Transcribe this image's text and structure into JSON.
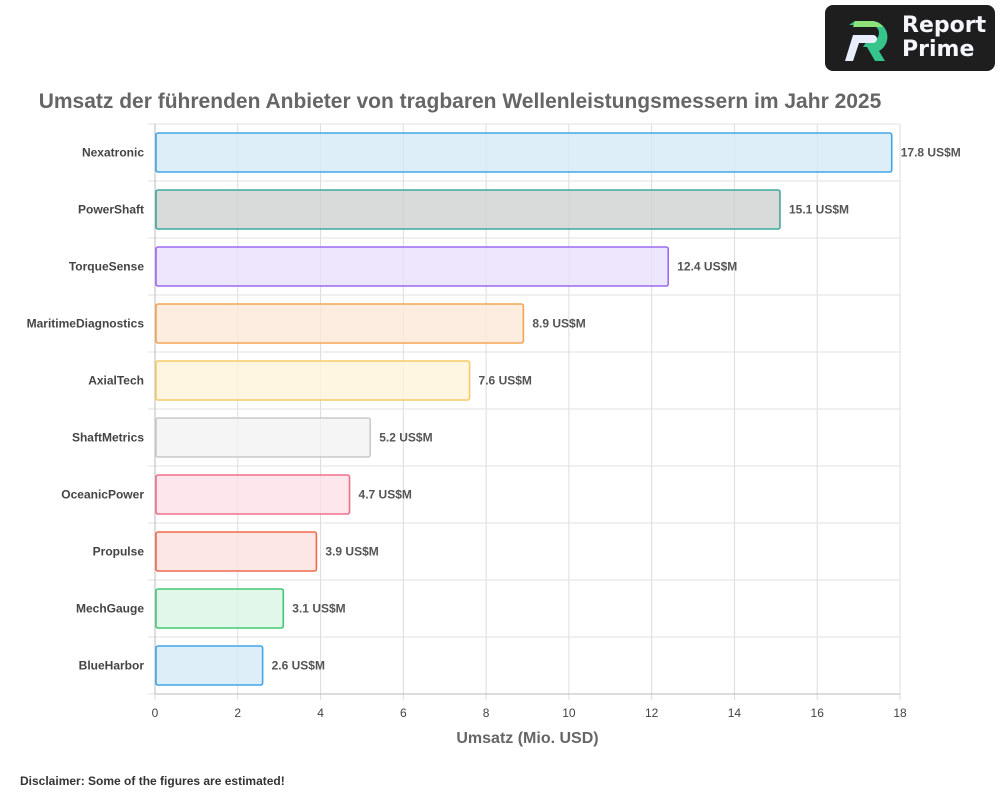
{
  "logo": {
    "line1": "Report",
    "line2": "Prime"
  },
  "disclaimer": "Disclaimer: Some of the figures are estimated!",
  "chart_data": {
    "type": "bar",
    "orientation": "horizontal",
    "title": "Umsatz der führenden Anbieter von tragbaren Wellenleistungsmessern im Jahr 2025",
    "xlabel": "Umsatz (Mio. USD)",
    "ylabel": "",
    "xlim": [
      0,
      18
    ],
    "xticks": [
      0,
      2,
      4,
      6,
      8,
      10,
      12,
      14,
      16,
      18
    ],
    "grid": true,
    "value_suffix": " US$M",
    "categories": [
      "Nexatronic",
      "PowerShaft",
      "TorqueSense",
      "MaritimeDiagnostics",
      "AxialTech",
      "ShaftMetrics",
      "OceanicPower",
      "Propulse",
      "MechGauge",
      "BlueHarbor"
    ],
    "values": [
      17.8,
      15.1,
      12.4,
      8.9,
      7.6,
      5.2,
      4.7,
      3.9,
      3.1,
      2.6
    ],
    "value_labels": [
      "17.8 US$M",
      "15.1 US$M",
      "12.4 US$M",
      "8.9 US$M",
      "7.6 US$M",
      "5.2 US$M",
      "4.7 US$M",
      "3.9 US$M",
      "3.1 US$M",
      "2.6 US$M"
    ],
    "fill_colors": [
      "#d6eaf8",
      "#d0d1d1",
      "#e8e0fd",
      "#fde9d8",
      "#fff4da",
      "#f2f2f2",
      "#fde0e7",
      "#fde1dd",
      "#d8f5e3",
      "#d6eaf8"
    ],
    "stroke_colors": [
      "#42a5e8",
      "#3fa8a0",
      "#9a6bf0",
      "#f2a552",
      "#f6cb66",
      "#cacaca",
      "#f0708a",
      "#f06a50",
      "#43c877",
      "#42a5e8"
    ]
  }
}
